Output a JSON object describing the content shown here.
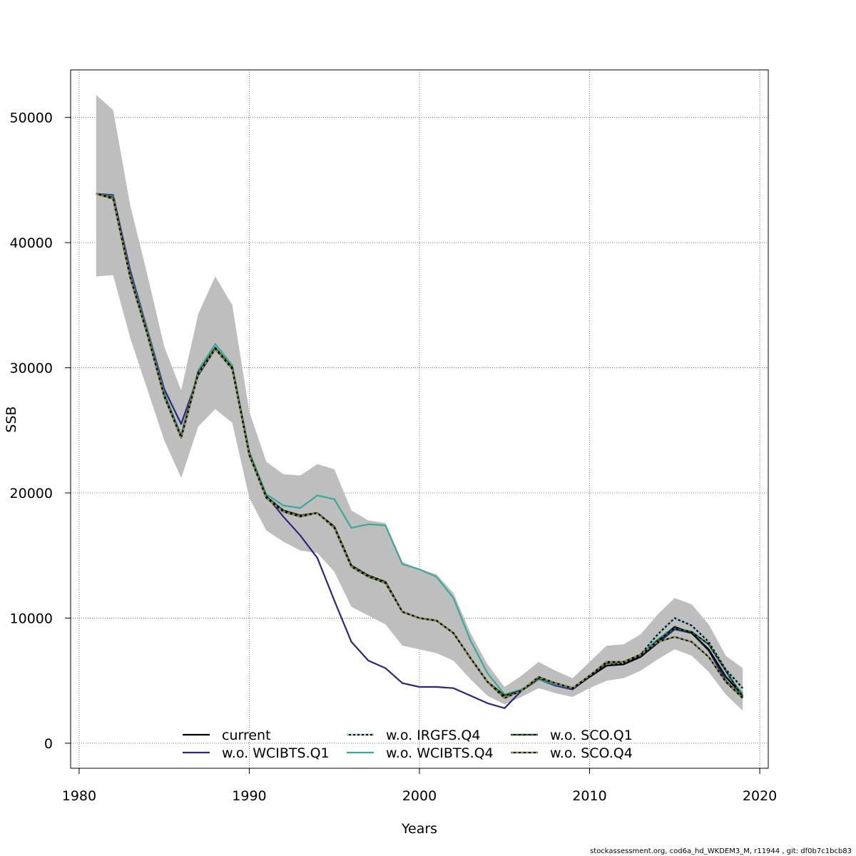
{
  "chart_data": {
    "type": "line",
    "title": "",
    "xlabel": "Years",
    "ylabel": "SSB",
    "xlim": [
      1979.5,
      2020.5
    ],
    "ylim": [
      -2000,
      53800
    ],
    "xticks": [
      1980,
      1990,
      2000,
      2010,
      2020
    ],
    "yticks": [
      0,
      10000,
      20000,
      30000,
      40000,
      50000
    ],
    "grid": true,
    "legend_position": "bottom",
    "x": [
      1981,
      1982,
      1983,
      1984,
      1985,
      1986,
      1987,
      1988,
      1989,
      1990,
      1991,
      1992,
      1993,
      1994,
      1995,
      1996,
      1997,
      1998,
      1999,
      2000,
      2001,
      2002,
      2003,
      2004,
      2005,
      2006,
      2007,
      2008,
      2009,
      2010,
      2011,
      2012,
      2013,
      2014,
      2015,
      2016,
      2017,
      2018,
      2019
    ],
    "band": {
      "color": "#bebebe",
      "upper": [
        51800,
        50600,
        43000,
        37500,
        31700,
        28200,
        34300,
        37300,
        35000,
        26500,
        22500,
        21500,
        21400,
        22300,
        21900,
        18600,
        17800,
        17600,
        14500,
        13900,
        13500,
        12000,
        8800,
        6300,
        4500,
        5400,
        6500,
        5800,
        5200,
        6500,
        7800,
        7900,
        8700,
        10300,
        11600,
        11100,
        9500,
        7000,
        6000
      ],
      "lower": [
        37300,
        37400,
        32400,
        28300,
        24200,
        21200,
        25300,
        26700,
        25600,
        19600,
        17000,
        16100,
        15400,
        15200,
        13700,
        10900,
        10200,
        9500,
        7800,
        7500,
        7200,
        6600,
        5100,
        3800,
        3100,
        3700,
        4400,
        4000,
        3700,
        4400,
        5000,
        5200,
        5800,
        6700,
        7500,
        7000,
        5700,
        3900,
        2600
      ]
    },
    "series": [
      {
        "name": "current",
        "color": "#000000",
        "dash": "",
        "values": [
          43900,
          43600,
          37300,
          32800,
          27800,
          24500,
          29600,
          31600,
          30000,
          23100,
          19700,
          18600,
          18200,
          18400,
          17300,
          14200,
          13400,
          12900,
          10500,
          10000,
          9800,
          8800,
          6800,
          4900,
          3800,
          4200,
          5200,
          4800,
          4400,
          5300,
          6200,
          6300,
          6900,
          8100,
          9300,
          8800,
          7500,
          5300,
          3800
        ]
      },
      {
        "name": "w.o. WCIBTS.Q1",
        "color": "#2d2580",
        "dash": "",
        "values": [
          43900,
          43800,
          37800,
          33100,
          28300,
          25500,
          29400,
          31500,
          29900,
          23300,
          19800,
          18100,
          16600,
          14800,
          11400,
          8100,
          6600,
          6000,
          4800,
          4500,
          4500,
          4400,
          3800,
          3200,
          2800,
          4200,
          5100,
          4600,
          4300,
          5300,
          6200,
          6400,
          6900,
          8000,
          9100,
          8800,
          7400,
          5000,
          3600
        ]
      },
      {
        "name": "w.o. IRGFS.Q4",
        "color": "#87ceeb",
        "dash": "3,3",
        "values": [
          43900,
          43600,
          37300,
          32800,
          27800,
          24500,
          29600,
          31600,
          30000,
          23100,
          19700,
          18600,
          18200,
          18400,
          17300,
          14200,
          13400,
          12900,
          10500,
          10000,
          9800,
          8800,
          6800,
          4900,
          3800,
          4200,
          5200,
          4800,
          4400,
          5300,
          6200,
          6400,
          7100,
          8700,
          10000,
          9400,
          8100,
          5900,
          4400
        ]
      },
      {
        "name": "w.o. WCIBTS.Q4",
        "color": "#3aa89c",
        "dash": "",
        "values": [
          43900,
          43700,
          37500,
          33000,
          28000,
          24600,
          29800,
          31900,
          30200,
          23300,
          19900,
          19000,
          18800,
          19800,
          19500,
          17200,
          17500,
          17400,
          14300,
          13900,
          13300,
          11600,
          8200,
          5600,
          3900,
          4300,
          5100,
          4700,
          4400,
          5300,
          6200,
          6400,
          7100,
          8300,
          9300,
          8800,
          7500,
          5400,
          4000
        ]
      },
      {
        "name": "w.o. SCO.Q1",
        "color": "#1e6b2e",
        "dash": "4,3",
        "values": [
          43900,
          43600,
          37300,
          32800,
          27800,
          24500,
          29600,
          31600,
          30000,
          23100,
          19700,
          18600,
          18200,
          18400,
          17300,
          14200,
          13400,
          12900,
          10500,
          10000,
          9800,
          8800,
          6800,
          4900,
          3800,
          4200,
          5200,
          4800,
          4400,
          5400,
          6400,
          6500,
          7000,
          8200,
          9200,
          8900,
          7900,
          5800,
          3700
        ]
      },
      {
        "name": "w.o. SCO.Q4",
        "color": "#8f8c30",
        "dash": "4,3",
        "values": [
          43900,
          43500,
          37200,
          32700,
          27700,
          24400,
          29500,
          31500,
          29900,
          23000,
          19600,
          18500,
          18100,
          18400,
          17200,
          14100,
          13300,
          12800,
          10500,
          10000,
          9800,
          8800,
          6800,
          4900,
          3600,
          4200,
          5300,
          4800,
          4400,
          5400,
          6500,
          6500,
          7100,
          8100,
          8500,
          8100,
          6900,
          4900,
          3600
        ]
      }
    ]
  },
  "footer": "stockassessment.org, cod6a_hd_WKDEM3_M, r11944 , git: df0b7c1bcb83"
}
